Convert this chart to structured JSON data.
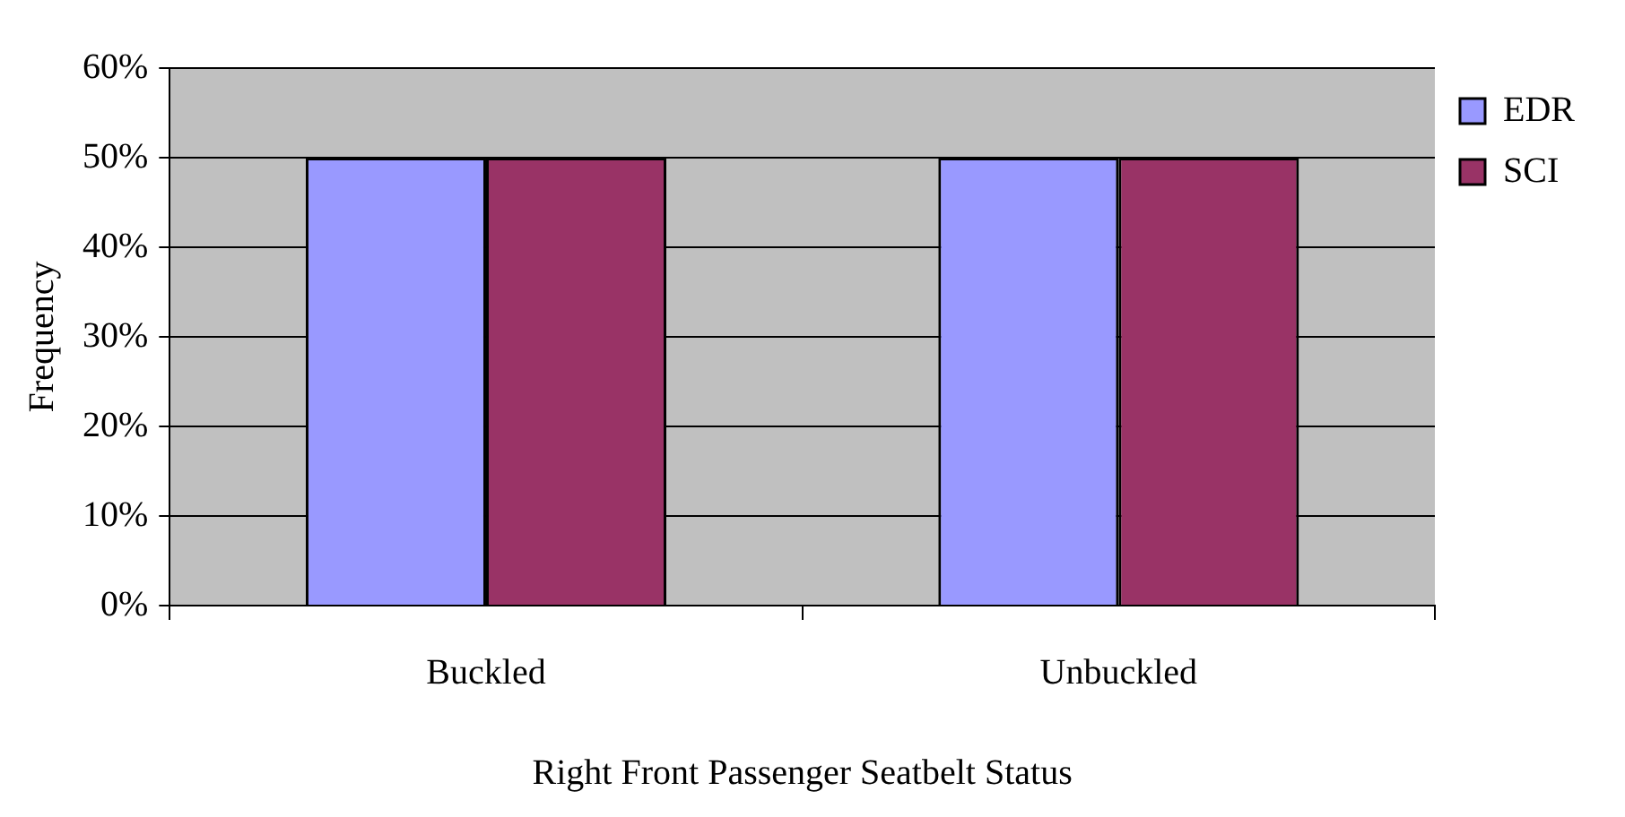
{
  "chart_data": {
    "type": "bar",
    "xlabel": "Right Front Passenger Seatbelt Status",
    "ylabel": "Frequency",
    "categories": [
      "Buckled",
      "Unbuckled"
    ],
    "series": [
      {
        "name": "EDR",
        "color": "#9999ff",
        "values": [
          50,
          50
        ]
      },
      {
        "name": "SCI",
        "color": "#993366",
        "values": [
          50,
          50
        ]
      }
    ],
    "ylim": [
      0,
      60
    ],
    "yticks": [
      {
        "value": 0,
        "label": "0%"
      },
      {
        "value": 10,
        "label": "10%"
      },
      {
        "value": 20,
        "label": "20%"
      },
      {
        "value": 30,
        "label": "30%"
      },
      {
        "value": 40,
        "label": "40%"
      },
      {
        "value": 50,
        "label": "50%"
      },
      {
        "value": 60,
        "label": "60%"
      }
    ],
    "grid": "y",
    "legend": "right"
  }
}
